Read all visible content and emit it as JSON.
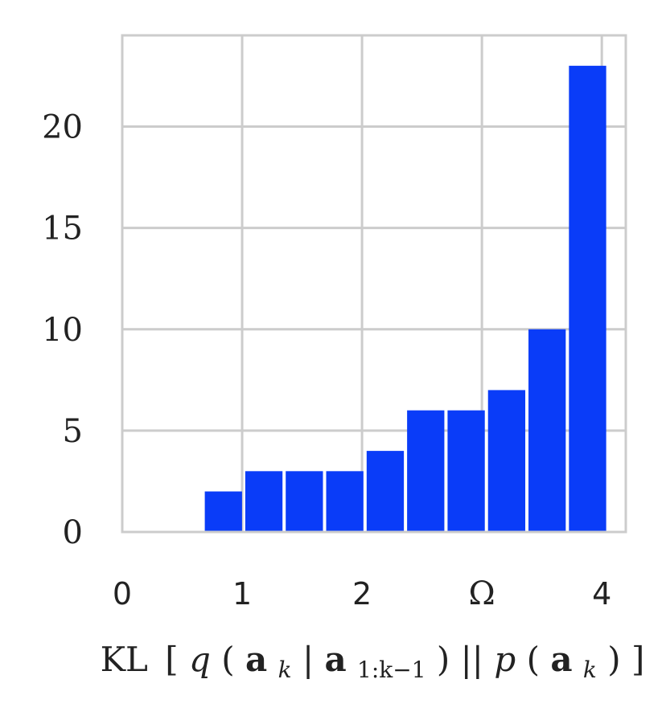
{
  "chart_data": {
    "type": "bar",
    "title": "",
    "xlabel_parts": {
      "kl": "KL",
      "lbr": "[",
      "q": "q",
      "lp1": "(",
      "a1": "a",
      "k1": "k",
      "bar1": "|",
      "a2": "a",
      "sub2": "1:k−1",
      "rp1": ")",
      "dbar": "||",
      "p": "p",
      "lp2": "(",
      "a3": "a",
      "k3": "k",
      "rp2": ")",
      "rbr": "]"
    },
    "ylabel": "",
    "xlim": [
      0,
      4.2
    ],
    "ylim": [
      0,
      24.5
    ],
    "x_ticks": [
      {
        "value": 0,
        "label": "0"
      },
      {
        "value": 1,
        "label": "1"
      },
      {
        "value": 2,
        "label": "2"
      },
      {
        "value": 3,
        "label": "Ω"
      },
      {
        "value": 4,
        "label": "4"
      }
    ],
    "y_ticks": [
      {
        "value": 0,
        "label": "0"
      },
      {
        "value": 5,
        "label": "5"
      },
      {
        "value": 10,
        "label": "10"
      },
      {
        "value": 15,
        "label": "15"
      },
      {
        "value": 20,
        "label": "20"
      }
    ],
    "bin_width": 0.3375,
    "bins": [
      {
        "start": 0.0,
        "value": 0
      },
      {
        "start": 0.3375,
        "value": 0
      },
      {
        "start": 0.675,
        "value": 2
      },
      {
        "start": 1.0125,
        "value": 3
      },
      {
        "start": 1.35,
        "value": 3
      },
      {
        "start": 1.6875,
        "value": 3
      },
      {
        "start": 2.025,
        "value": 4
      },
      {
        "start": 2.3625,
        "value": 6
      },
      {
        "start": 2.7,
        "value": 6
      },
      {
        "start": 3.0375,
        "value": 7
      },
      {
        "start": 3.375,
        "value": 10
      },
      {
        "start": 3.7125,
        "value": 23
      }
    ],
    "grid": true,
    "colors": {
      "bar": "#0A3CF8",
      "grid": "#CCCCCC",
      "frame": "#CCCCCC",
      "text": "#222222"
    }
  }
}
